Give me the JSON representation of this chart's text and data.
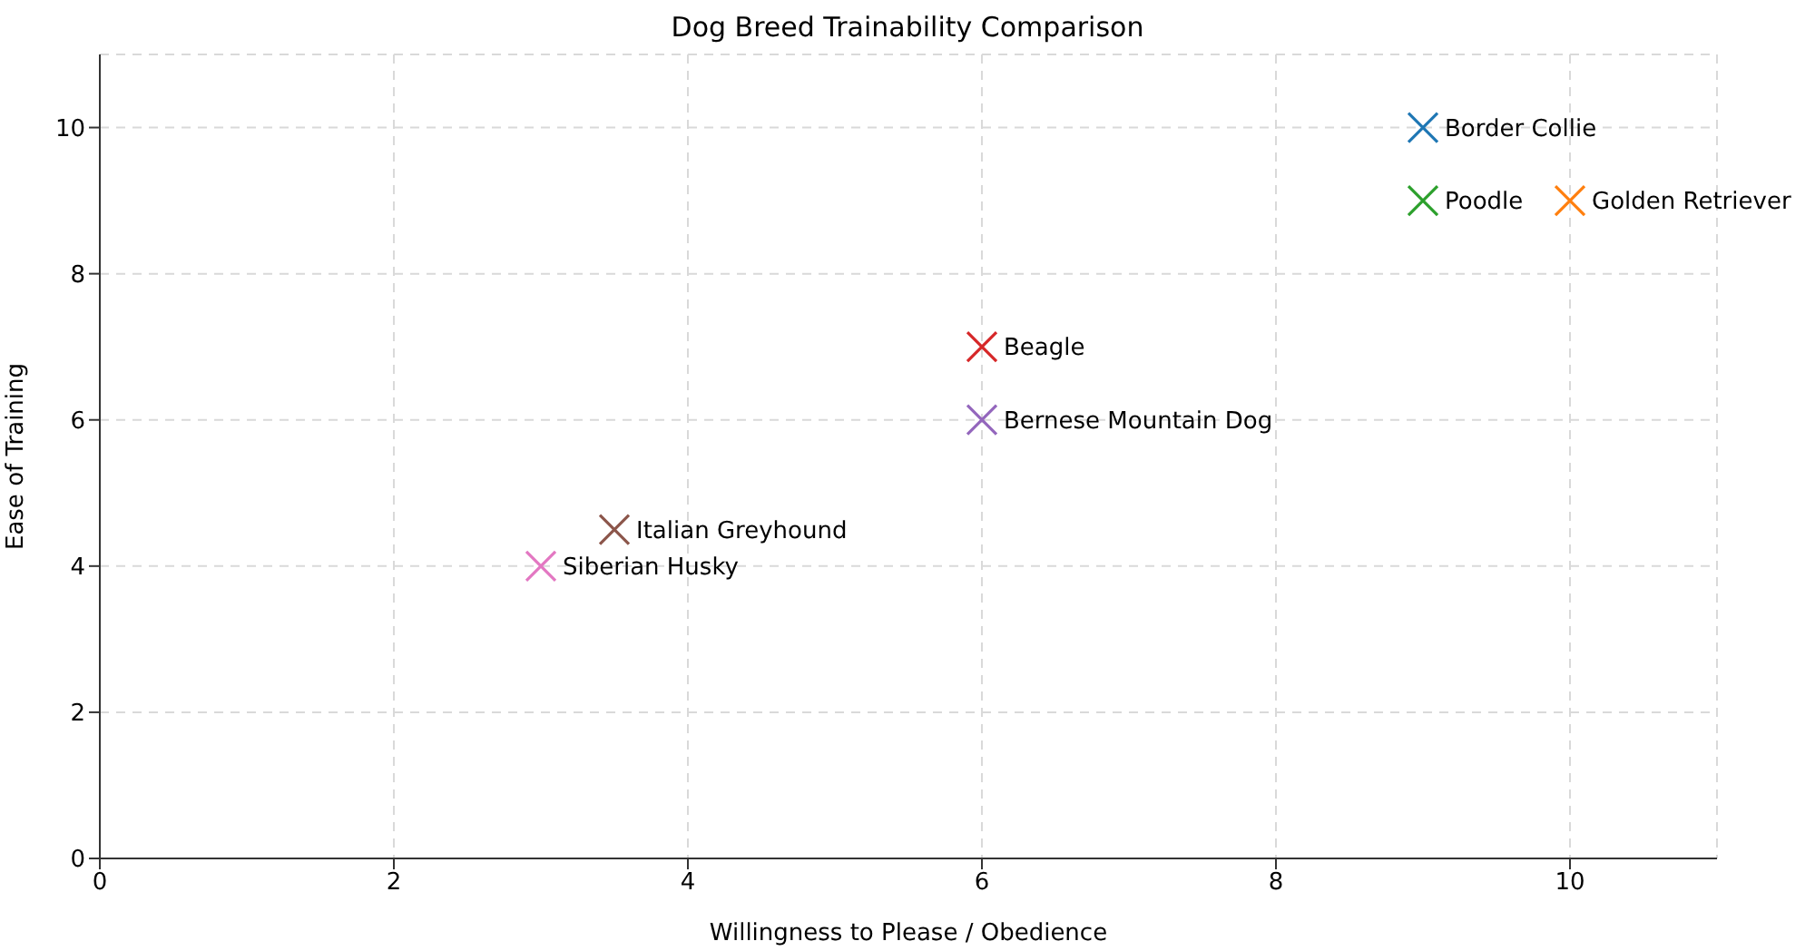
{
  "chart_data": {
    "type": "scatter",
    "title": "Dog Breed Trainability Comparison",
    "xlabel": "Willingness to Please / Obedience",
    "ylabel": "Ease of Training",
    "series": [
      {
        "name": "Border Collie",
        "color": "#1f77b4",
        "x": [
          9
        ],
        "values": [
          10
        ]
      },
      {
        "name": "Golden Retriever",
        "color": "#ff7f0e",
        "x": [
          10
        ],
        "values": [
          9
        ]
      },
      {
        "name": "Poodle",
        "color": "#2ca02c",
        "x": [
          9
        ],
        "values": [
          9
        ]
      },
      {
        "name": "Beagle",
        "color": "#d62728",
        "x": [
          6
        ],
        "values": [
          7
        ]
      },
      {
        "name": "Bernese Mountain Dog",
        "color": "#9467bd",
        "x": [
          6
        ],
        "values": [
          6
        ]
      },
      {
        "name": "Italian Greyhound",
        "color": "#8c564b",
        "x": [
          3.5
        ],
        "values": [
          4.5
        ]
      },
      {
        "name": "Siberian Husky",
        "color": "#e377c2",
        "x": [
          3
        ],
        "values": [
          4
        ]
      }
    ],
    "xlim": [
      0,
      11
    ],
    "ylim": [
      0,
      11
    ],
    "xticks": [
      0,
      2,
      4,
      6,
      8,
      10
    ],
    "yticks": [
      0,
      2,
      4,
      6,
      8,
      10
    ],
    "grid": true,
    "marker": "cross",
    "legend": false
  }
}
